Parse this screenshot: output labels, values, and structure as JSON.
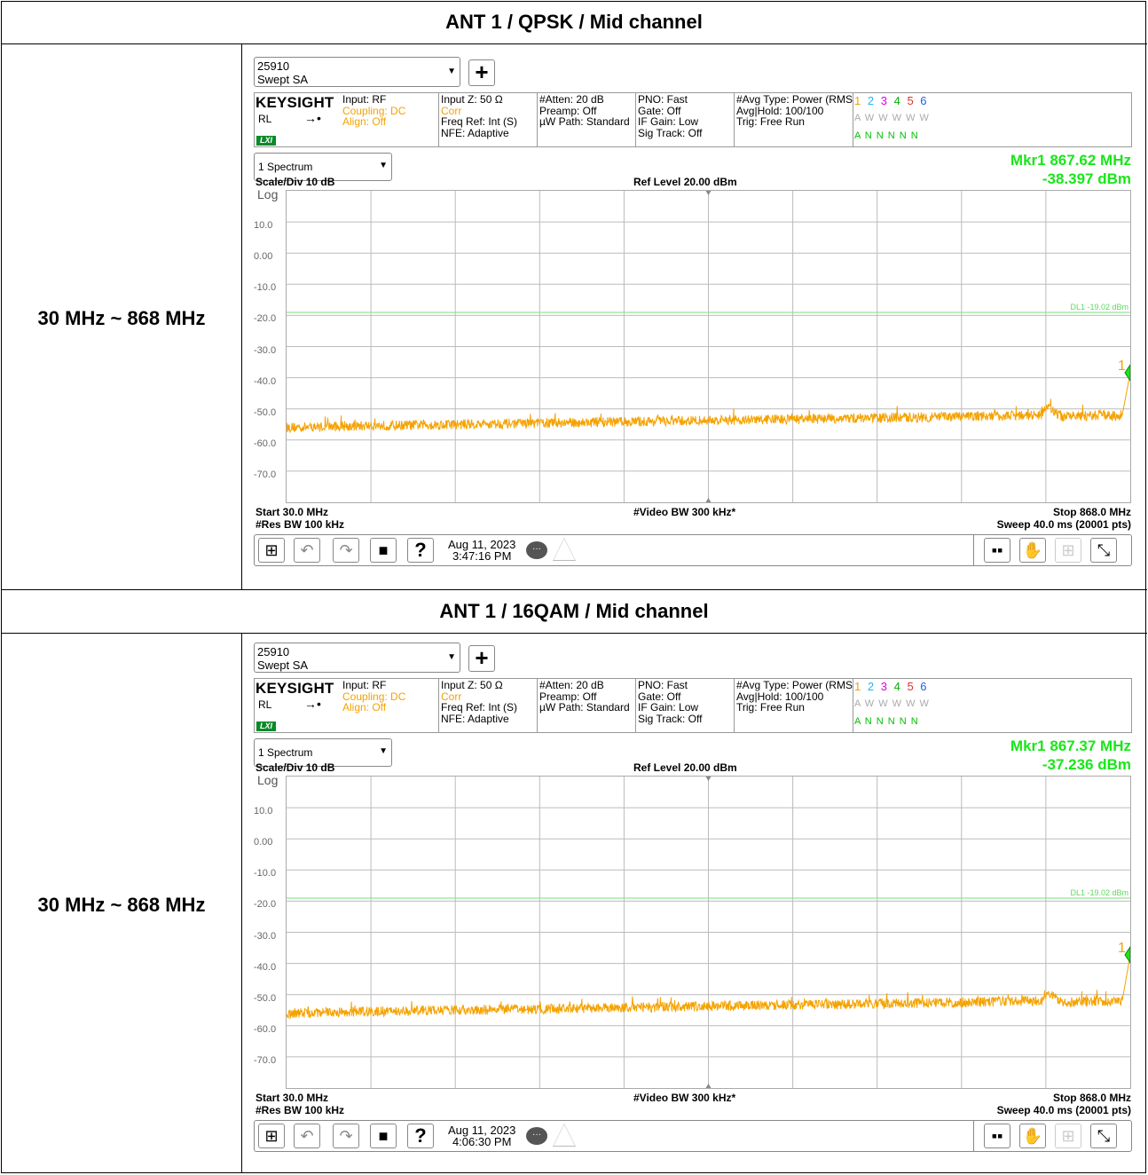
{
  "sections": [
    {
      "title": "ANT 1 / QPSK / Mid channel",
      "range_label": "30 MHz ~ 868 MHz",
      "sa": {
        "dropdown_line1": "25910",
        "dropdown_line2": "Swept SA",
        "brand": "KEYSIGHT",
        "input": "Input: RF",
        "coupling": "Coupling: DC",
        "align": "Align: Off",
        "rl": "RL",
        "lxi": "LXI",
        "input_z": "Input Z: 50 Ω",
        "corr": "Corr",
        "freq_ref": "Freq Ref: Int (S)",
        "nfe": "NFE: Adaptive",
        "atten": "#Atten: 20 dB",
        "preamp": "Preamp: Off",
        "uw_path": "µW Path: Standard",
        "pno": "PNO: Fast",
        "gate": "Gate: Off",
        "if_gain": "IF Gain: Low",
        "sig_track": "Sig Track: Off",
        "avg_type": "#Avg Type: Power (RMS)",
        "avg_hold": "Avg|Hold: 100/100",
        "trig": "Trig: Free Run",
        "trace_nums": [
          "1",
          "2",
          "3",
          "4",
          "5",
          "6"
        ],
        "trace_row2": "A W W W W W",
        "trace_row3": "A N N N N N",
        "view": "1 Spectrum",
        "marker_freq": "Mkr1  867.62 MHz",
        "marker_amp": "-38.397 dBm",
        "scale": "Scale/Div 10 dB",
        "ref_level": "Ref Level 20.00 dBm",
        "log": "Log",
        "y_ticks": [
          "10.0",
          "0.00",
          "-10.0",
          "-20.0",
          "-30.0",
          "-40.0",
          "-50.0",
          "-60.0",
          "-70.0"
        ],
        "dl_label": "DL1 -19.02 dBm",
        "start": "Start 30.0 MHz",
        "video_bw": "#Video BW 300 kHz*",
        "stop": "Stop 868.0 MHz",
        "res_bw": "#Res BW 100 kHz",
        "sweep": "Sweep 40.0 ms (20001 pts)",
        "date": "Aug 11, 2023",
        "time": "3:47:16 PM",
        "marker_num": "1",
        "marker_value": -38.397
      }
    },
    {
      "title": "ANT 1 / 16QAM / Mid channel",
      "range_label": "30 MHz ~ 868 MHz",
      "sa": {
        "dropdown_line1": "25910",
        "dropdown_line2": "Swept SA",
        "brand": "KEYSIGHT",
        "input": "Input: RF",
        "coupling": "Coupling: DC",
        "align": "Align: Off",
        "rl": "RL",
        "lxi": "LXI",
        "input_z": "Input Z: 50 Ω",
        "corr": "Corr",
        "freq_ref": "Freq Ref: Int (S)",
        "nfe": "NFE: Adaptive",
        "atten": "#Atten: 20 dB",
        "preamp": "Preamp: Off",
        "uw_path": "µW Path: Standard",
        "pno": "PNO: Fast",
        "gate": "Gate: Off",
        "if_gain": "IF Gain: Low",
        "sig_track": "Sig Track: Off",
        "avg_type": "#Avg Type: Power (RMS)",
        "avg_hold": "Avg|Hold: 100/100",
        "trig": "Trig: Free Run",
        "trace_nums": [
          "1",
          "2",
          "3",
          "4",
          "5",
          "6"
        ],
        "trace_row2": "A W W W W W",
        "trace_row3": "A N N N N N",
        "view": "1 Spectrum",
        "marker_freq": "Mkr1  867.37 MHz",
        "marker_amp": "-37.236 dBm",
        "scale": "Scale/Div 10 dB",
        "ref_level": "Ref Level 20.00 dBm",
        "log": "Log",
        "y_ticks": [
          "10.0",
          "0.00",
          "-10.0",
          "-20.0",
          "-30.0",
          "-40.0",
          "-50.0",
          "-60.0",
          "-70.0"
        ],
        "dl_label": "DL1 -19.02 dBm",
        "start": "Start 30.0 MHz",
        "video_bw": "#Video BW 300 kHz*",
        "stop": "Stop 868.0 MHz",
        "res_bw": "#Res BW 100 kHz",
        "sweep": "Sweep 40.0 ms (20001 pts)",
        "date": "Aug 11, 2023",
        "time": "4:06:30 PM",
        "marker_num": "1",
        "marker_value": -37.236
      }
    }
  ],
  "colors": {
    "trace": "#f5a200",
    "marker_text": "#19e619",
    "display_line": "#7ddf7d",
    "trace_colors": [
      "#f5a200",
      "#1fb4ff",
      "#e000e0",
      "#00b000",
      "#e03030",
      "#2060e0"
    ]
  },
  "chart_data": [
    {
      "type": "line",
      "x": [
        30,
        100,
        200,
        300,
        400,
        500,
        600,
        700,
        780,
        785,
        800,
        860,
        868
      ],
      "series": [
        {
          "values": [
            -56,
            -55.5,
            -55,
            -54.5,
            -54,
            -53.5,
            -53,
            -52.5,
            -52,
            -49,
            -52.5,
            -52,
            -38.4
          ]
        }
      ],
      "xlim": [
        30,
        868
      ],
      "ylim": [
        -80,
        20
      ],
      "display_line": -19.02
    },
    {
      "type": "line",
      "x": [
        30,
        100,
        200,
        300,
        400,
        500,
        600,
        700,
        780,
        785,
        800,
        860,
        868
      ],
      "series": [
        {
          "values": [
            -56,
            -55.5,
            -55,
            -54.5,
            -54,
            -53.5,
            -53,
            -52.5,
            -52,
            -49,
            -52.5,
            -52,
            -37.2
          ]
        }
      ],
      "xlim": [
        30,
        868
      ],
      "ylim": [
        -80,
        20
      ],
      "display_line": -19.02
    }
  ]
}
